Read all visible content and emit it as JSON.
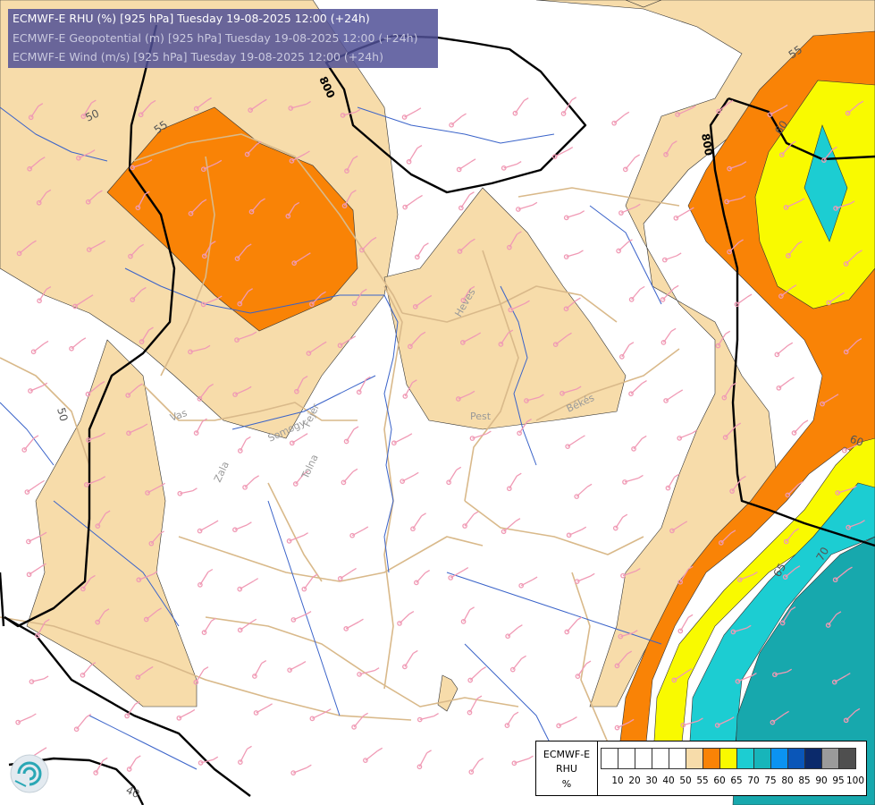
{
  "header": {
    "line1": "ECMWF-E RHU (%) [925 hPa] Tuesday 19-08-2025 12:00 (+24h)",
    "line2": "ECMWF-E Geopotential (m) [925 hPa] Tuesday 19-08-2025 12:00 (+24h)",
    "line3": "ECMWF-E Wind (m/s) [925 hPa] Tuesday 19-08-2025 12:00 (+24h)"
  },
  "region_labels": [
    "Vas",
    "Zala",
    "Somogy",
    "Fejér",
    "Tolna",
    "Heves",
    "Pest",
    "Békés"
  ],
  "contour_labels": {
    "geopotential": [
      "800",
      "800"
    ],
    "rhu": [
      "50",
      "55",
      "50",
      "40",
      "55",
      "60",
      "60",
      "65",
      "70"
    ]
  },
  "legend": {
    "title_lines": [
      "ECMWF-E",
      "RHU",
      "%"
    ],
    "items": [
      {
        "label": "10",
        "color": "#ffffff"
      },
      {
        "label": "20",
        "color": "#ffffff"
      },
      {
        "label": "30",
        "color": "#ffffff"
      },
      {
        "label": "40",
        "color": "#ffffff"
      },
      {
        "label": "50",
        "color": "#ffffff"
      },
      {
        "label": "55",
        "color": "#f7dcaa"
      },
      {
        "label": "60",
        "color": "#f98306"
      },
      {
        "label": "65",
        "color": "#f9fa00"
      },
      {
        "label": "70",
        "color": "#1ccdd2"
      },
      {
        "label": "75",
        "color": "#17b5ba"
      },
      {
        "label": "80",
        "color": "#0b93f1"
      },
      {
        "label": "85",
        "color": "#0a56b8"
      },
      {
        "label": "90",
        "color": "#0b2a6b"
      },
      {
        "label": "95",
        "color": "#9b9b9b"
      },
      {
        "label": "100",
        "color": "#4f4f4f"
      }
    ]
  },
  "colors": {
    "band_55": "#f7dcaa",
    "band_60": "#f98306",
    "band_65": "#f9fa00",
    "band_70": "#1ccdd2",
    "band_75": "#17a8ad",
    "geopotential_line": "#000000",
    "county_border": "#d9b98a",
    "river": "#3a63c9",
    "wind_barb": "#f09ab5"
  },
  "logo": "ecmwf-logo"
}
